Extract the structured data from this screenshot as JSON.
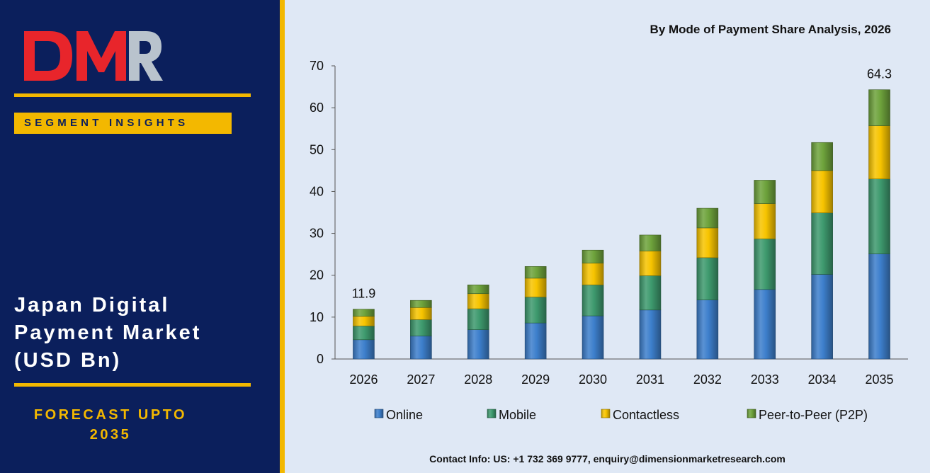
{
  "brand": {
    "logo_text": "DMR",
    "colors": {
      "navy": "#0b1f5c",
      "gold": "#f3b800",
      "logo_red": "#e8252b",
      "logo_grey": "#b9c3cd"
    }
  },
  "left_panel": {
    "badge": "SEGMENT INSIGHTS",
    "title_lines": [
      "Japan Digital",
      "Payment Market",
      "(USD Bn)"
    ],
    "forecast_lines": [
      "FORECAST UPTO",
      "2035"
    ]
  },
  "chart_data": {
    "type": "bar",
    "stacked": true,
    "title": "By Mode of Payment Share Analysis, 2026",
    "categories": [
      "2026",
      "2027",
      "2028",
      "2029",
      "2030",
      "2031",
      "2032",
      "2033",
      "2034",
      "2035"
    ],
    "series": [
      {
        "name": "Online",
        "color": "#3d7fcc",
        "values": [
          4.6,
          5.5,
          7.0,
          8.6,
          10.3,
          11.7,
          14.1,
          16.6,
          20.2,
          25.1
        ]
      },
      {
        "name": "Mobile",
        "color": "#3e9a6e",
        "values": [
          3.3,
          3.9,
          5.0,
          6.2,
          7.4,
          8.2,
          10.1,
          12.1,
          14.7,
          17.9
        ]
      },
      {
        "name": "Contactless",
        "color": "#f7c400",
        "values": [
          2.3,
          2.9,
          3.6,
          4.5,
          5.2,
          5.9,
          7.1,
          8.4,
          10.1,
          12.7
        ]
      },
      {
        "name": "Peer-to-Peer (P2P)",
        "color": "#6ea33c",
        "values": [
          1.7,
          1.7,
          2.1,
          2.8,
          3.1,
          3.8,
          4.7,
          5.6,
          6.7,
          8.6
        ]
      }
    ],
    "data_labels": [
      {
        "category": "2026",
        "text": "11.9"
      },
      {
        "category": "2035",
        "text": "64.3"
      }
    ],
    "yticks": [
      "0",
      "10",
      "20",
      "30",
      "40",
      "50",
      "60",
      "70"
    ],
    "ylim": [
      0,
      70
    ],
    "grid": false,
    "legend_position": "bottom"
  },
  "footer": {
    "contact": "Contact Info: US: +1 732 369 9777, enquiry@dimensionmarketresearch.com"
  }
}
